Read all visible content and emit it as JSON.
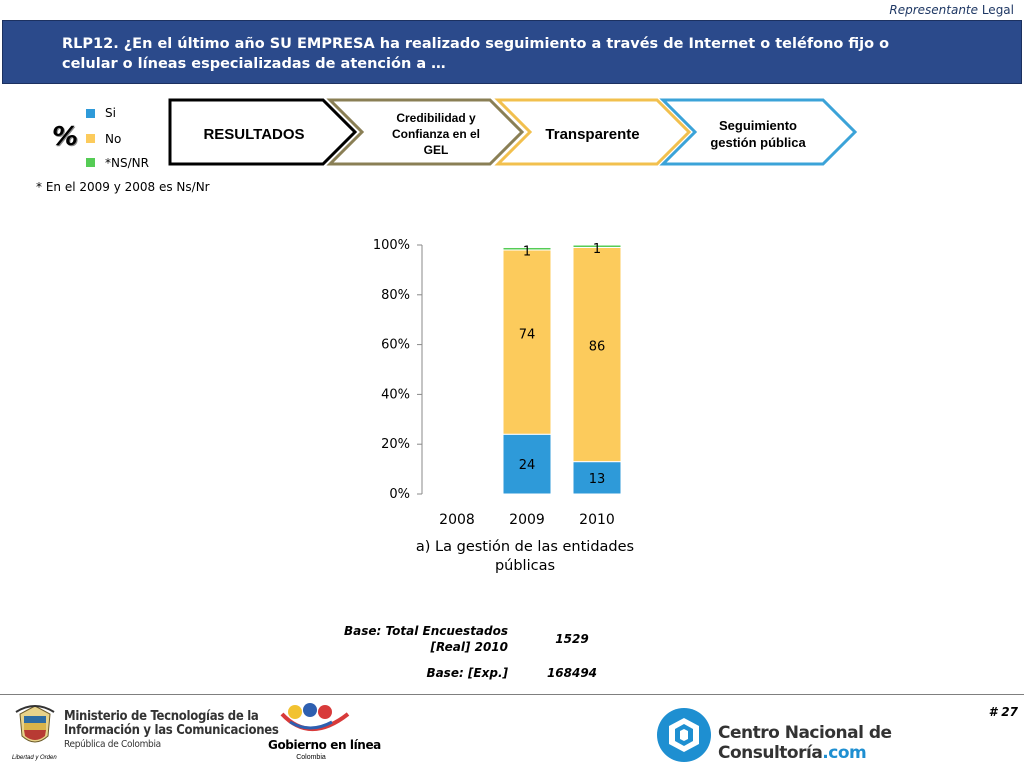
{
  "header": {
    "tag_italic": "Representante",
    "tag_rest": " Legal"
  },
  "title": "RLP12. ¿En el último año SU EMPRESA ha realizado seguimiento a través de Internet o teléfono fijo o celular o líneas especializadas de atención a …",
  "legend": {
    "percent_symbol": "%",
    "items": [
      {
        "label": "Si",
        "color": "#2e9ad9"
      },
      {
        "label": "No",
        "color": "#fccb5c"
      },
      {
        "label": "*NS/NR",
        "color": "#55cc55"
      }
    ]
  },
  "footnote": "* En el 2009 y 2008 es Ns/Nr",
  "steps": [
    {
      "label": "RESULTADOS",
      "border": "#000000"
    },
    {
      "label": "Credibilidad y Confianza en el GEL",
      "border": "#8a7f55"
    },
    {
      "label": "Transparente",
      "border": "#f2c04e"
    },
    {
      "label": "Seguimiento gestión pública",
      "border": "#3ba3d8"
    }
  ],
  "chart_data": {
    "type": "bar",
    "stacked": true,
    "categories": [
      "2008",
      "2009",
      "2010"
    ],
    "series": [
      {
        "name": "Si",
        "color": "#2e9ad9",
        "values": [
          null,
          24,
          13
        ]
      },
      {
        "name": "No",
        "color": "#fccb5c",
        "values": [
          null,
          74,
          86
        ]
      },
      {
        "name": "*NS/NR",
        "color": "#55cc55",
        "values": [
          null,
          1,
          1
        ]
      }
    ],
    "y_ticks": [
      "0%",
      "20%",
      "40%",
      "60%",
      "80%",
      "100%"
    ],
    "ylim": [
      0,
      100
    ],
    "xlabel": "a) La gestión de las entidades públicas"
  },
  "base": {
    "label1": "Base: Total Encuestados [Real] 2010",
    "value1": "1529",
    "label2": "Base: [Exp.]",
    "value2": "168494"
  },
  "footer": {
    "page_number": "# 27",
    "ministry_line1": "Ministerio de Tecnologías de la",
    "ministry_line2": "Información y las Comunicaciones",
    "ministry_line3": "República de Colombia",
    "ministry_motto": "Libertad y Orden",
    "gel_name": "Gobierno en línea",
    "gel_country": "Colombia",
    "cnc_name": "Centro Nacional de Consultoría",
    "cnc_suffix": ".com"
  }
}
